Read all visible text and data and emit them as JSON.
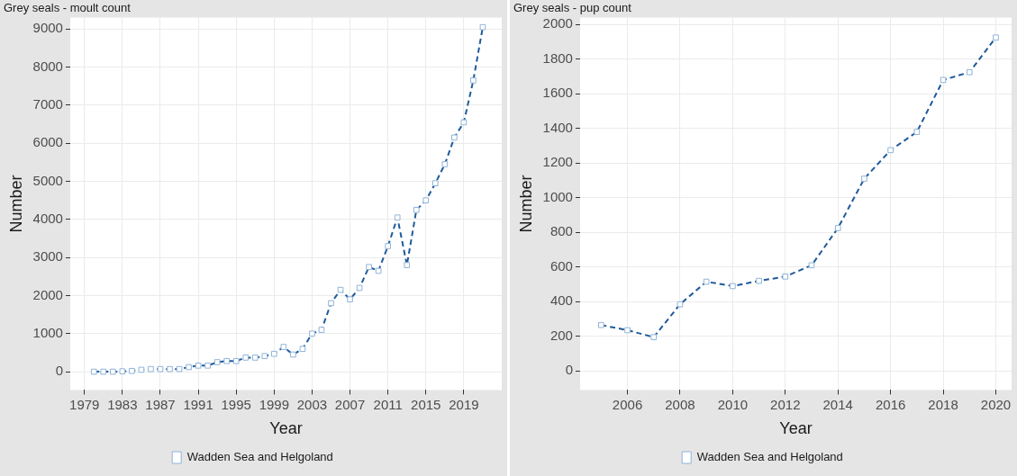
{
  "chart_data": [
    {
      "type": "line",
      "title": "Grey seals - moult count",
      "xlabel": "Year",
      "ylabel": "Number",
      "x": [
        1980,
        1981,
        1982,
        1983,
        1984,
        1985,
        1986,
        1987,
        1988,
        1989,
        1990,
        1991,
        1992,
        1993,
        1994,
        1995,
        1996,
        1997,
        1998,
        1999,
        2000,
        2001,
        2002,
        2003,
        2004,
        2005,
        2006,
        2007,
        2008,
        2009,
        2010,
        2011,
        2012,
        2013,
        2014,
        2015,
        2016,
        2017,
        2018,
        2019,
        2020,
        2021
      ],
      "series": [
        {
          "name": "Wadden Sea and Helgoland",
          "color": "#1f5a9a",
          "values": [
            0,
            0,
            0,
            10,
            20,
            50,
            70,
            70,
            70,
            70,
            120,
            160,
            160,
            250,
            280,
            280,
            370,
            370,
            410,
            470,
            650,
            450,
            600,
            1000,
            1100,
            1800,
            2150,
            1900,
            2200,
            2750,
            2650,
            3300,
            4050,
            2800,
            4250,
            4500,
            4950,
            5450,
            6150,
            6550,
            7650,
            9050
          ]
        }
      ],
      "xlim": [
        1977.5,
        2023
      ],
      "xticks": [
        1979,
        1983,
        1987,
        1991,
        1995,
        1999,
        2003,
        2007,
        2011,
        2015,
        2019
      ],
      "ylim": [
        -480,
        9300
      ],
      "yticks": [
        0,
        1000,
        2000,
        3000,
        4000,
        5000,
        6000,
        7000,
        8000,
        9000
      ],
      "grid": true,
      "legend": "bottom",
      "marker": "square",
      "line_style": "dashed"
    },
    {
      "type": "line",
      "title": "Grey seals - pup count",
      "xlabel": "Year",
      "ylabel": "Number",
      "x": [
        2005,
        2006,
        2007,
        2008,
        2009,
        2010,
        2011,
        2012,
        2013,
        2014,
        2015,
        2016,
        2017,
        2018,
        2019,
        2020
      ],
      "series": [
        {
          "name": "Wadden Sea and Helgoland",
          "color": "#1f5a9a",
          "values": [
            265,
            235,
            195,
            385,
            515,
            490,
            520,
            545,
            610,
            825,
            1110,
            1275,
            1380,
            1680,
            1725,
            1925
          ]
        }
      ],
      "xlim": [
        2004.2,
        2020.6
      ],
      "xticks": [
        2006,
        2008,
        2010,
        2012,
        2014,
        2016,
        2018,
        2020
      ],
      "ylim": [
        -110,
        2040
      ],
      "yticks": [
        0,
        200,
        400,
        600,
        800,
        1000,
        1200,
        1400,
        1600,
        1800,
        2000
      ],
      "grid": true,
      "legend": "bottom",
      "marker": "square",
      "line_style": "dashed"
    }
  ]
}
